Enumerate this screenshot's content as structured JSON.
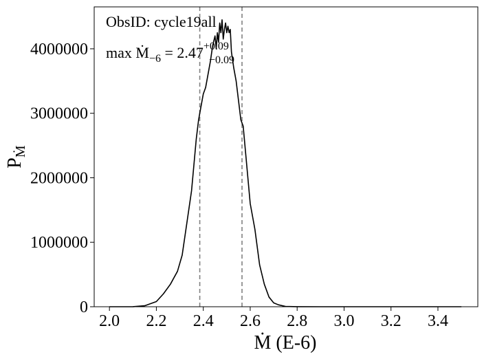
{
  "chart_data": {
    "type": "line",
    "xlabel": "Ṁ (E-6)",
    "ylabel": {
      "base": "P",
      "sub": "Ṁ"
    },
    "xlim": [
      1.935,
      3.57
    ],
    "ylim": [
      0,
      4650000
    ],
    "xticks": [
      2.0,
      2.2,
      2.4,
      2.6,
      2.8,
      3.0,
      3.2,
      3.4
    ],
    "xtick_labels": [
      "2.0",
      "2.2",
      "2.4",
      "2.6",
      "2.8",
      "3.0",
      "3.2",
      "3.4"
    ],
    "yticks": [
      0,
      1000000,
      2000000,
      3000000,
      4000000
    ],
    "ytick_labels": [
      "0",
      "1000000",
      "2000000",
      "3000000",
      "4000000"
    ],
    "grid": false,
    "series": [
      {
        "x": [
          2.0,
          2.1,
          2.15,
          2.2,
          2.23,
          2.26,
          2.29,
          2.31,
          2.33,
          2.35,
          2.36,
          2.37,
          2.38,
          2.39,
          2.4,
          2.41,
          2.42,
          2.43,
          2.44,
          2.45,
          2.455,
          2.46,
          2.465,
          2.47,
          2.475,
          2.48,
          2.485,
          2.49,
          2.495,
          2.5,
          2.505,
          2.51,
          2.515,
          2.52,
          2.53,
          2.54,
          2.55,
          2.56,
          2.57,
          2.58,
          2.59,
          2.6,
          2.62,
          2.64,
          2.66,
          2.68,
          2.7,
          2.72,
          2.75,
          2.8,
          2.9,
          3.0,
          3.5
        ],
        "y": [
          0,
          1000,
          15000,
          80000,
          200000,
          350000,
          550000,
          800000,
          1300000,
          1800000,
          2200000,
          2600000,
          2900000,
          3100000,
          3300000,
          3400000,
          3600000,
          3800000,
          4050000,
          4200000,
          4000000,
          4250000,
          4100000,
          4400000,
          4250000,
          4450000,
          4150000,
          4300000,
          4400000,
          4250000,
          4350000,
          4250000,
          4300000,
          3950000,
          3700000,
          3500000,
          3200000,
          2900000,
          2800000,
          2400000,
          2000000,
          1600000,
          1200000,
          650000,
          350000,
          150000,
          60000,
          30000,
          5000,
          1000,
          0,
          0,
          0
        ]
      }
    ],
    "vlines": [
      2.385,
      2.565
    ],
    "annotations": {
      "obsid": "ObsID: cycle19all",
      "max_prefix": "max ",
      "max_symbol": "Ṁ",
      "max_sub": "−6",
      "max_eq": " = 2.47",
      "max_sup": "+0.09",
      "max_lower": "−0.09"
    },
    "colors": {
      "line": "#000000",
      "vline": "#808080"
    }
  }
}
